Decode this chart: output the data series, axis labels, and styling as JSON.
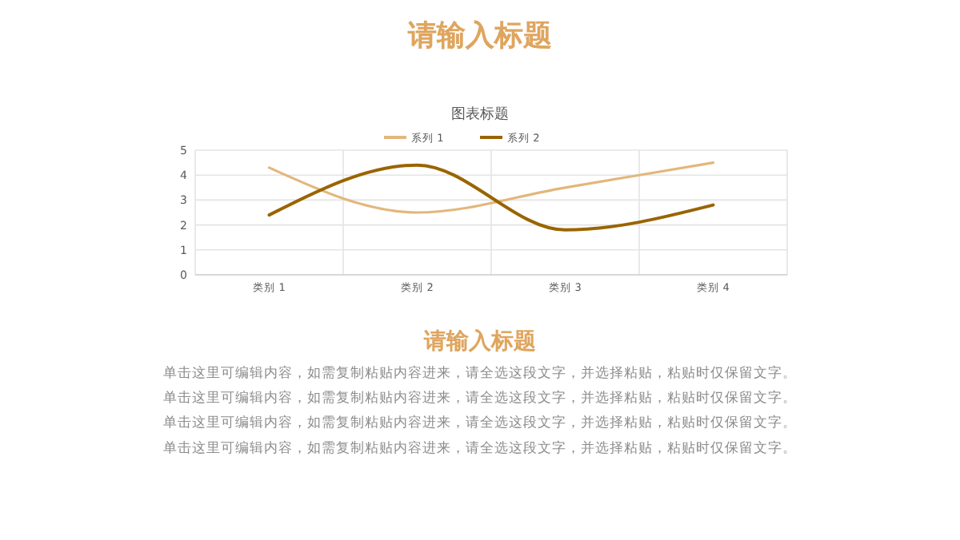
{
  "chart_data": {
    "type": "line",
    "title": "请输入标题",
    "subtitle": "图表标题",
    "categories": [
      "类别 1",
      "类别 2",
      "类别 3",
      "类别 4"
    ],
    "series": [
      {
        "name": "系列 1",
        "color": "#e2b77c",
        "values": [
          4.3,
          2.5,
          3.5,
          4.5
        ]
      },
      {
        "name": "系列 2",
        "color": "#9a6400",
        "values": [
          2.4,
          4.4,
          1.8,
          2.8
        ]
      }
    ],
    "ylim": [
      0,
      5
    ],
    "yticks": [
      0,
      1,
      2,
      3,
      4,
      5
    ],
    "grid": true,
    "legend": "top",
    "marker": "none",
    "line_style": "solid",
    "annotations": [
      "请输入标题",
      "单击这里可编辑内容，如需复制粘贴内容进来，请全选这段文字，并选择粘贴，粘贴时仅保留文字。",
      "单击这里可编辑内容，如需复制粘贴内容进来，请全选这段文字，并选择粘贴，粘贴时仅保留文字。",
      "单击这里可编辑内容，如需复制粘贴内容进来，请全选这段文字，并选择粘贴，粘贴时仅保留文字。",
      "单击这里可编辑内容，如需复制粘贴内容进来，请全选这段文字，并选择粘贴，粘贴时仅保留文字。"
    ]
  }
}
